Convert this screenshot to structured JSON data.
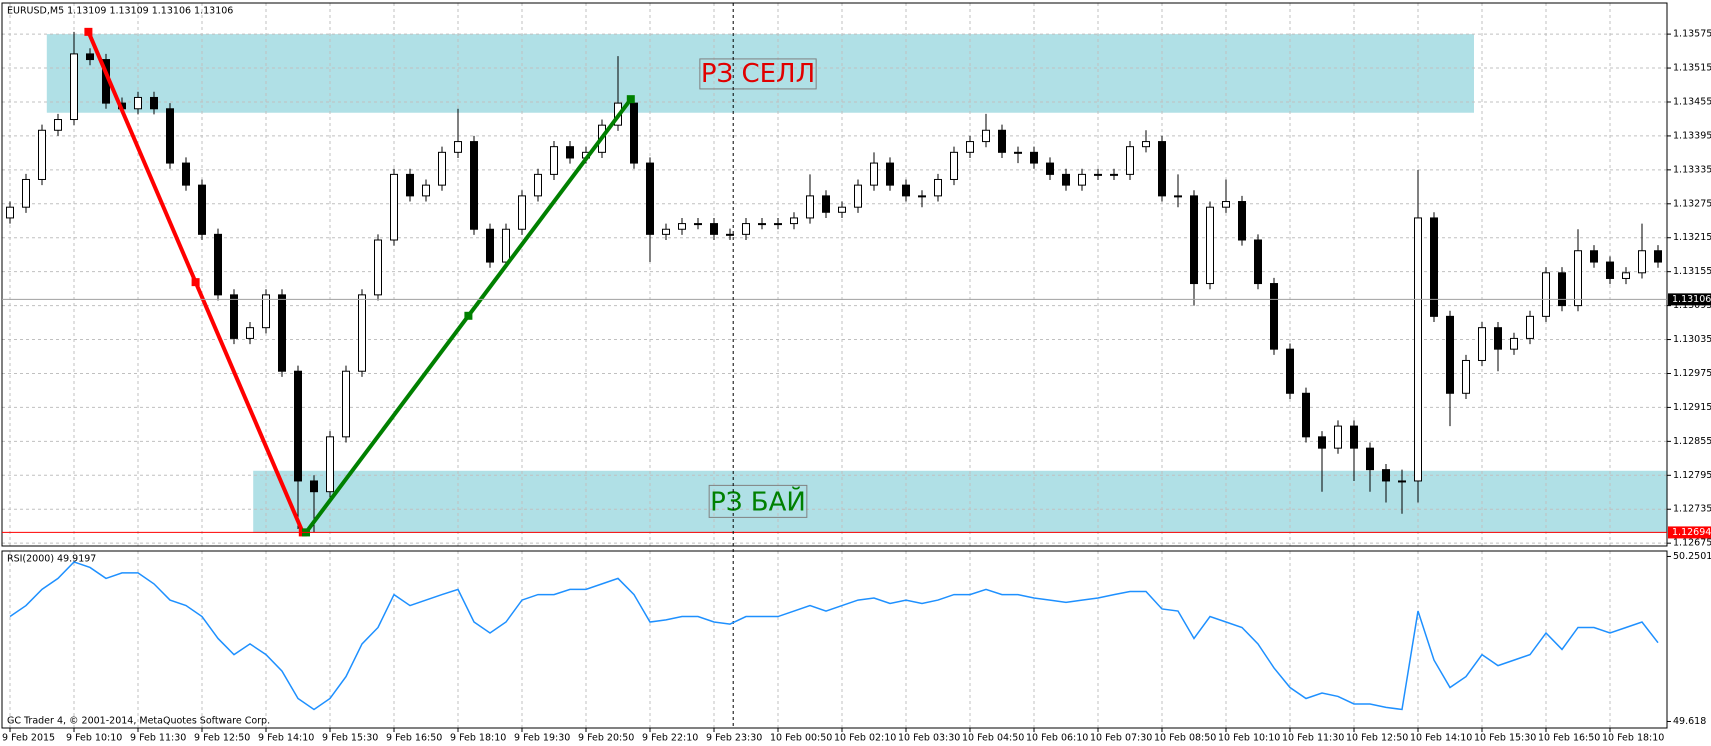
{
  "chart_data": [
    {
      "type": "candlestick",
      "title": "EURUSD,M5  1.13109 1.13109 1.13106 1.13106",
      "open": [
        1.1325,
        1.13269,
        1.13318,
        1.13405,
        1.13424,
        1.1354,
        1.1353,
        1.13453,
        1.13443,
        1.13463,
        1.13443,
        1.13347,
        1.13308,
        1.13221,
        1.13114,
        1.13037,
        1.13056,
        1.13114,
        1.12979,
        1.12785,
        1.12766,
        1.12863,
        1.12979,
        1.13114,
        1.13211,
        1.13327,
        1.13289,
        1.13308,
        1.13366,
        1.13385,
        1.1323,
        1.13172,
        1.1323,
        1.13289,
        1.13327,
        1.13376,
        1.13356,
        1.13366,
        1.13414,
        1.13453,
        1.13347,
        1.13221,
        1.1323,
        1.1324,
        1.1324,
        1.13221,
        1.13221,
        1.1324,
        1.1324,
        1.1324,
        1.1325,
        1.13289,
        1.1326,
        1.13269,
        1.13308,
        1.13347,
        1.13308,
        1.13289,
        1.13289,
        1.13318,
        1.13366,
        1.13385,
        1.13405,
        1.13366,
        1.13366,
        1.13347,
        1.13327,
        1.13308,
        1.13327,
        1.13327,
        1.13327,
        1.13376,
        1.13385,
        1.13289,
        1.13289,
        1.13134,
        1.13269,
        1.13279,
        1.13211,
        1.13134,
        1.13018,
        1.1294,
        1.12863,
        1.12843,
        1.12882,
        1.12843,
        1.12805,
        1.12785,
        1.12785,
        1.1325,
        1.13076,
        1.1294,
        1.12998,
        1.13056,
        1.13018,
        1.13037,
        1.13076,
        1.13153,
        1.13095,
        1.13192,
        1.13172,
        1.13143,
        1.13153,
        1.13192
      ],
      "high": [
        1.13279,
        1.13328,
        1.13415,
        1.13434,
        1.13579,
        1.1355,
        1.1354,
        1.13463,
        1.13473,
        1.13473,
        1.13453,
        1.13357,
        1.13318,
        1.13231,
        1.13124,
        1.13066,
        1.13124,
        1.13124,
        1.12989,
        1.12795,
        1.12873,
        1.12989,
        1.13124,
        1.13221,
        1.13337,
        1.13337,
        1.13318,
        1.13376,
        1.13443,
        1.13395,
        1.1324,
        1.1324,
        1.13299,
        1.13337,
        1.13386,
        1.13386,
        1.13376,
        1.13424,
        1.13536,
        1.13463,
        1.13357,
        1.1324,
        1.1325,
        1.1325,
        1.1325,
        1.13231,
        1.1325,
        1.1325,
        1.1325,
        1.1326,
        1.13327,
        1.13299,
        1.13279,
        1.13318,
        1.13366,
        1.13357,
        1.13318,
        1.13299,
        1.13328,
        1.13376,
        1.13395,
        1.13434,
        1.13415,
        1.13376,
        1.13376,
        1.13357,
        1.13337,
        1.13337,
        1.13337,
        1.13337,
        1.13386,
        1.13405,
        1.13395,
        1.13327,
        1.13299,
        1.13279,
        1.13318,
        1.13289,
        1.13221,
        1.13144,
        1.13028,
        1.1295,
        1.12873,
        1.12892,
        1.12892,
        1.12853,
        1.12815,
        1.12805,
        1.13335,
        1.1326,
        1.13086,
        1.13008,
        1.13066,
        1.13066,
        1.13047,
        1.13086,
        1.13163,
        1.13163,
        1.1323,
        1.13202,
        1.13182,
        1.13163,
        1.1324,
        1.13202
      ],
      "low": [
        1.1324,
        1.13259,
        1.13308,
        1.13395,
        1.13414,
        1.1352,
        1.13443,
        1.13433,
        1.13433,
        1.13433,
        1.13337,
        1.13298,
        1.13211,
        1.13104,
        1.13027,
        1.13027,
        1.13046,
        1.12969,
        1.127,
        1.12694,
        1.12756,
        1.12853,
        1.12969,
        1.13104,
        1.13201,
        1.13279,
        1.13279,
        1.13298,
        1.13356,
        1.1322,
        1.13162,
        1.13162,
        1.1322,
        1.13279,
        1.13317,
        1.13346,
        1.13346,
        1.13356,
        1.13404,
        1.13337,
        1.13172,
        1.13211,
        1.1322,
        1.1323,
        1.13211,
        1.13211,
        1.13211,
        1.1323,
        1.1323,
        1.1323,
        1.1324,
        1.1325,
        1.1325,
        1.13259,
        1.13298,
        1.13298,
        1.13279,
        1.13269,
        1.13279,
        1.13308,
        1.13356,
        1.13375,
        1.13356,
        1.13347,
        1.13337,
        1.13317,
        1.13298,
        1.13298,
        1.13317,
        1.13317,
        1.13317,
        1.13366,
        1.13279,
        1.13269,
        1.13095,
        1.13124,
        1.13259,
        1.13201,
        1.13124,
        1.13008,
        1.1293,
        1.12853,
        1.12766,
        1.12833,
        1.12785,
        1.12766,
        1.12747,
        1.12727,
        1.12747,
        1.13066,
        1.12882,
        1.1293,
        1.12988,
        1.12979,
        1.13008,
        1.13027,
        1.13066,
        1.13085,
        1.13085,
        1.13162,
        1.13133,
        1.13133,
        1.13143,
        1.13162
      ],
      "close": [
        1.13269,
        1.13318,
        1.13405,
        1.13424,
        1.1354,
        1.1353,
        1.13453,
        1.13443,
        1.13463,
        1.13443,
        1.13347,
        1.13308,
        1.13221,
        1.13114,
        1.13037,
        1.13056,
        1.13114,
        1.12979,
        1.12785,
        1.12766,
        1.12863,
        1.12979,
        1.13114,
        1.13211,
        1.13327,
        1.13289,
        1.13308,
        1.13366,
        1.13385,
        1.1323,
        1.13172,
        1.1323,
        1.13289,
        1.13327,
        1.13376,
        1.13356,
        1.13366,
        1.13414,
        1.13453,
        1.13347,
        1.13221,
        1.1323,
        1.1324,
        1.1324,
        1.13221,
        1.13221,
        1.1324,
        1.1324,
        1.1324,
        1.1325,
        1.13289,
        1.1326,
        1.13269,
        1.13308,
        1.13347,
        1.13308,
        1.13289,
        1.13289,
        1.13318,
        1.13366,
        1.13385,
        1.13405,
        1.13366,
        1.13366,
        1.13347,
        1.13327,
        1.13308,
        1.13327,
        1.13327,
        1.13327,
        1.13376,
        1.13385,
        1.13289,
        1.13289,
        1.13134,
        1.13269,
        1.13279,
        1.13211,
        1.13134,
        1.13018,
        1.1294,
        1.12863,
        1.12843,
        1.12882,
        1.12843,
        1.12805,
        1.12785,
        1.12785,
        1.1325,
        1.13076,
        1.1294,
        1.12998,
        1.13056,
        1.13018,
        1.13037,
        1.13076,
        1.13153,
        1.13095,
        1.13192,
        1.13172,
        1.13143,
        1.13153,
        1.13192,
        1.13172
      ],
      "ylim": [
        1.1267,
        1.1363
      ],
      "yticks": [
        1.13575,
        1.13515,
        1.13455,
        1.13395,
        1.13335,
        1.13275,
        1.13215,
        1.13155,
        1.13095,
        1.13035,
        1.12975,
        1.12915,
        1.12855,
        1.12795,
        1.12735,
        1.12675
      ],
      "grid": true,
      "zones": [
        {
          "label": "РЗ СЕЛЛ",
          "text_color": "#e00000",
          "x": [
            2.3,
            91.5
          ],
          "y": [
            1.13575,
            1.13436
          ]
        },
        {
          "label": "РЗ БАЙ",
          "text_color": "#008000",
          "x": [
            15.2,
            103.6
          ],
          "y": [
            1.12803,
            1.12693
          ]
        }
      ],
      "trend_lines": [
        {
          "color": "#ff0000",
          "x": [
            4.9,
            18.3
          ],
          "y": [
            1.13579,
            1.12694
          ]
        },
        {
          "color": "#008000",
          "x": [
            18.5,
            38.8
          ],
          "y": [
            1.12694,
            1.1346
          ]
        }
      ],
      "price_lines": [
        {
          "value": 1.13106,
          "color": "#000000"
        },
        {
          "value": 1.12694,
          "color": "#ff0000"
        }
      ],
      "crosshair_x": 45.2
    },
    {
      "type": "line",
      "title": "RSI(2000) 49.9197",
      "color": "#1e90ff",
      "values": [
        50.02,
        50.062,
        50.124,
        50.166,
        50.229,
        50.208,
        50.166,
        50.187,
        50.187,
        50.145,
        50.083,
        50.062,
        50.02,
        49.936,
        49.874,
        49.915,
        49.874,
        49.811,
        49.706,
        49.664,
        49.706,
        49.79,
        49.915,
        49.978,
        50.104,
        50.062,
        50.083,
        50.104,
        50.124,
        49.999,
        49.957,
        49.999,
        50.083,
        50.104,
        50.104,
        50.124,
        50.124,
        50.145,
        50.166,
        50.104,
        49.999,
        50.007,
        50.02,
        50.02,
        49.999,
        49.991,
        50.02,
        50.02,
        50.02,
        50.041,
        50.062,
        50.041,
        50.062,
        50.083,
        50.091,
        50.07,
        50.083,
        50.07,
        50.083,
        50.104,
        50.104,
        50.124,
        50.104,
        50.104,
        50.091,
        50.083,
        50.074,
        50.083,
        50.091,
        50.104,
        50.116,
        50.116,
        50.049,
        50.041,
        49.936,
        50.02,
        49.999,
        49.978,
        49.915,
        49.823,
        49.748,
        49.706,
        49.727,
        49.714,
        49.685,
        49.685,
        49.672,
        49.664,
        50.041,
        49.853,
        49.748,
        49.79,
        49.874,
        49.832,
        49.853,
        49.874,
        49.957,
        49.894,
        49.978,
        49.978,
        49.957,
        49.978,
        49.999,
        49.9197
      ],
      "ylim": [
        49.593,
        50.271
      ],
      "yticks": [
        50.2501,
        49.618
      ],
      "xticks": [
        {
          "value": 0,
          "label": "9 Feb 2015"
        },
        {
          "value": 4,
          "label": "9 Feb 10:10"
        },
        {
          "value": 8,
          "label": "9 Feb 11:30"
        },
        {
          "value": 12,
          "label": "9 Feb 12:50"
        },
        {
          "value": 16,
          "label": "9 Feb 14:10"
        },
        {
          "value": 20,
          "label": "9 Feb 15:30"
        },
        {
          "value": 24,
          "label": "9 Feb 16:50"
        },
        {
          "value": 28,
          "label": "9 Feb 18:10"
        },
        {
          "value": 32,
          "label": "9 Feb 19:30"
        },
        {
          "value": 36,
          "label": "9 Feb 20:50"
        },
        {
          "value": 40,
          "label": "9 Feb 22:10"
        },
        {
          "value": 44,
          "label": "9 Feb 23:30"
        },
        {
          "value": 48,
          "label": "10 Feb 00:50"
        },
        {
          "value": 52,
          "label": "10 Feb 02:10"
        },
        {
          "value": 56,
          "label": "10 Feb 03:30"
        },
        {
          "value": 60,
          "label": "10 Feb 04:50"
        },
        {
          "value": 64,
          "label": "10 Feb 06:10"
        },
        {
          "value": 68,
          "label": "10 Feb 07:30"
        },
        {
          "value": 72,
          "label": "10 Feb 08:50"
        },
        {
          "value": 76,
          "label": "10 Feb 10:10"
        },
        {
          "value": 80,
          "label": "10 Feb 11:30"
        },
        {
          "value": 84,
          "label": "10 Feb 12:50"
        },
        {
          "value": 88,
          "label": "10 Feb 14:10"
        },
        {
          "value": 92,
          "label": "10 Feb 15:30"
        },
        {
          "value": 96,
          "label": "10 Feb 16:50"
        },
        {
          "value": 100,
          "label": "10 Feb 18:10"
        }
      ],
      "footer": "GC Trader 4, © 2001-2014, MetaQuotes Software Corp."
    }
  ]
}
